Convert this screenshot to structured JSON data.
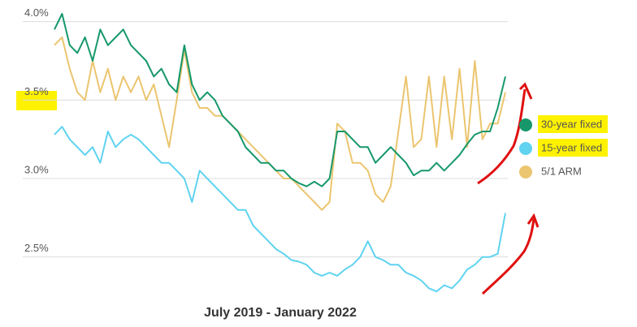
{
  "chart_data": {
    "type": "line",
    "title": "July 2019 - January 2022",
    "ylim": [
      2.25,
      4.05
    ],
    "yticks": [
      {
        "value": 2.5,
        "label": "2.5%"
      },
      {
        "value": 3,
        "label": "3.0%"
      },
      {
        "value": 3.5,
        "label": "3.5%"
      },
      {
        "value": 4,
        "label": "4.0%"
      }
    ],
    "grid": true,
    "legend": "right",
    "series": [
      {
        "name": "30-year fixed",
        "color": "#16986a",
        "values": [
          3.95,
          4.05,
          3.85,
          3.8,
          3.9,
          3.75,
          3.95,
          3.85,
          3.9,
          3.95,
          3.85,
          3.8,
          3.75,
          3.65,
          3.7,
          3.6,
          3.55,
          3.85,
          3.6,
          3.5,
          3.55,
          3.5,
          3.4,
          3.35,
          3.3,
          3.2,
          3.15,
          3.1,
          3.1,
          3.05,
          3.05,
          3.0,
          2.97,
          2.95,
          2.98,
          2.95,
          3.0,
          3.3,
          3.3,
          3.25,
          3.2,
          3.2,
          3.1,
          3.15,
          3.2,
          3.15,
          3.1,
          3.02,
          3.05,
          3.05,
          3.1,
          3.05,
          3.1,
          3.15,
          3.22,
          3.28,
          3.3,
          3.3,
          3.45,
          3.65
        ]
      },
      {
        "name": "15-year fixed",
        "color": "#5fd3f0",
        "values": [
          3.28,
          3.33,
          3.25,
          3.2,
          3.15,
          3.2,
          3.1,
          3.3,
          3.2,
          3.25,
          3.28,
          3.25,
          3.2,
          3.15,
          3.1,
          3.1,
          3.05,
          3.0,
          2.85,
          3.05,
          3.0,
          2.95,
          2.9,
          2.85,
          2.8,
          2.8,
          2.7,
          2.65,
          2.6,
          2.55,
          2.52,
          2.48,
          2.47,
          2.45,
          2.4,
          2.38,
          2.4,
          2.38,
          2.42,
          2.45,
          2.5,
          2.6,
          2.5,
          2.48,
          2.45,
          2.45,
          2.4,
          2.38,
          2.35,
          2.3,
          2.28,
          2.32,
          2.3,
          2.35,
          2.42,
          2.45,
          2.5,
          2.5,
          2.52,
          2.78
        ]
      },
      {
        "name": "5/1 ARM",
        "color": "#ebc56f",
        "values": [
          3.85,
          3.9,
          3.7,
          3.55,
          3.5,
          3.75,
          3.55,
          3.7,
          3.5,
          3.65,
          3.55,
          3.65,
          3.5,
          3.6,
          3.4,
          3.2,
          3.5,
          3.82,
          3.55,
          3.45,
          3.45,
          3.4,
          3.4,
          3.35,
          3.3,
          3.25,
          3.2,
          3.15,
          3.1,
          3.05,
          3.0,
          3.0,
          2.95,
          2.9,
          2.85,
          2.8,
          2.85,
          3.35,
          3.3,
          3.1,
          3.1,
          3.05,
          2.9,
          2.85,
          2.95,
          3.3,
          3.65,
          3.2,
          3.25,
          3.65,
          3.2,
          3.65,
          3.25,
          3.7,
          3.2,
          3.75,
          3.25,
          3.35,
          3.35,
          3.55
        ]
      }
    ]
  }
}
